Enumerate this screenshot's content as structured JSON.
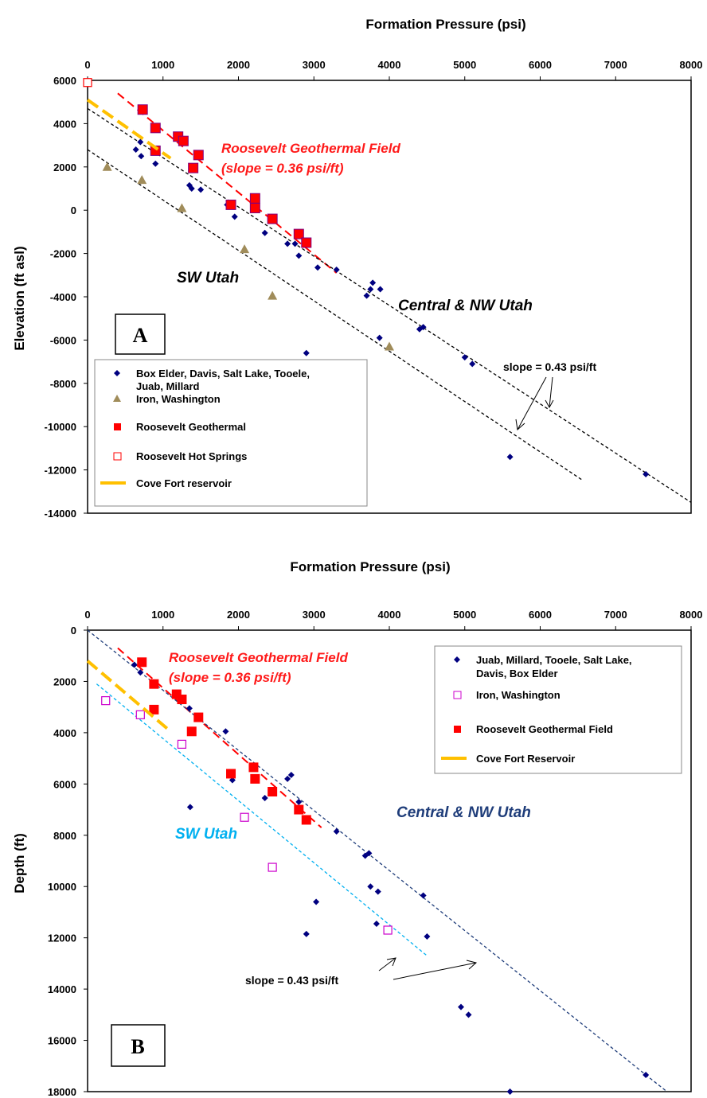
{
  "chart_data": [
    {
      "panel": "A",
      "type": "scatter",
      "xlabel": "Formation Pressure (psi)",
      "ylabel": "Elevation (ft asl)",
      "xlim": [
        0,
        8000
      ],
      "ylim": [
        -14000,
        6000
      ],
      "x_ticks": [
        0,
        1000,
        2000,
        3000,
        4000,
        5000,
        6000,
        7000,
        8000
      ],
      "y_ticks": [
        6000,
        4000,
        2000,
        0,
        -2000,
        -4000,
        -6000,
        -8000,
        -10000,
        -12000,
        -14000
      ],
      "x_axis_position": "top",
      "grid": false,
      "legend_position": "bottom-left",
      "annotations": {
        "field_line1": "Roosevelt Geothermal Field",
        "field_line2": "(slope = 0.36 psi/ft)",
        "sw": "SW Utah",
        "central": "Central & NW Utah",
        "slope": "slope = 0.43 psi/ft"
      },
      "series": [
        {
          "name": "Box Elder, Davis, Salt Lake, Tooele, Juab, Millard",
          "legend_lines": [
            "Box Elder, Davis, Salt Lake, Tooele,",
            "Juab, Millard"
          ],
          "marker": "diamond",
          "color": "#000080",
          "points": [
            [
              640,
              2800
            ],
            [
              700,
              3150
            ],
            [
              710,
              2500
            ],
            [
              900,
              2150
            ],
            [
              1350,
              1150
            ],
            [
              1380,
              1000
            ],
            [
              1500,
              950
            ],
            [
              1850,
              250
            ],
            [
              1950,
              -300
            ],
            [
              2350,
              -1050
            ],
            [
              2650,
              -1550
            ],
            [
              2750,
              -1550
            ],
            [
              2800,
              -2100
            ],
            [
              3050,
              -2650
            ],
            [
              3300,
              -2750
            ],
            [
              3700,
              -3950
            ],
            [
              3750,
              -3650
            ],
            [
              3780,
              -3350
            ],
            [
              3880,
              -3650
            ],
            [
              3870,
              -5900
            ],
            [
              2900,
              -6600
            ],
            [
              4400,
              -5500
            ],
            [
              4450,
              -5400
            ],
            [
              5000,
              -6800
            ],
            [
              5100,
              -7100
            ],
            [
              5600,
              -11400
            ],
            [
              7400,
              -12200
            ]
          ]
        },
        {
          "name": "Iron, Washington",
          "marker": "triangle",
          "color": "#a08c5a",
          "points": [
            [
              260,
              2000
            ],
            [
              720,
              1400
            ],
            [
              1250,
              100
            ],
            [
              2080,
              -1800
            ],
            [
              2450,
              -3950
            ],
            [
              4000,
              -6300
            ]
          ]
        },
        {
          "name": "Roosevelt Geothermal",
          "marker": "square",
          "color": "#ff0000",
          "points": [
            [
              730,
              4650
            ],
            [
              900,
              3800
            ],
            [
              1200,
              3400
            ],
            [
              1270,
              3200
            ],
            [
              900,
              2750
            ],
            [
              1470,
              2550
            ],
            [
              1400,
              1950
            ],
            [
              1900,
              250
            ],
            [
              2220,
              550
            ],
            [
              2220,
              100
            ],
            [
              2450,
              -400
            ],
            [
              2800,
              -1100
            ],
            [
              2900,
              -1500
            ]
          ]
        },
        {
          "name": "Roosevelt Hot Springs",
          "marker": "open-square",
          "color": "#ff0000",
          "points": [
            [
              0,
              5900
            ]
          ]
        },
        {
          "name": "Cove Fort reservoir",
          "marker": "line",
          "color": "#ffc000",
          "points": [
            [
              0,
              5100
            ],
            [
              1100,
              2400
            ]
          ]
        }
      ],
      "trend_lines": [
        {
          "color": "#ff0000",
          "points": [
            [
              400,
              5400
            ],
            [
              3300,
              -2900
            ]
          ]
        },
        {
          "color": "#000000",
          "points": [
            [
              0,
              4700
            ],
            [
              8000,
              -13500
            ]
          ]
        },
        {
          "color": "#000000",
          "points": [
            [
              0,
              2800
            ],
            [
              6550,
              -12450
            ]
          ]
        }
      ]
    },
    {
      "panel": "B",
      "type": "scatter",
      "xlabel": "Formation Pressure (psi)",
      "ylabel": "Depth (ft)",
      "xlim": [
        0,
        8000
      ],
      "ylim": [
        0,
        18000
      ],
      "y_inverted": true,
      "x_ticks": [
        0,
        1000,
        2000,
        3000,
        4000,
        5000,
        6000,
        7000,
        8000
      ],
      "y_ticks": [
        0,
        2000,
        4000,
        6000,
        8000,
        10000,
        12000,
        14000,
        16000,
        18000
      ],
      "x_axis_position": "top",
      "grid": false,
      "legend_position": "top-right",
      "annotations": {
        "field_line1": "Roosevelt Geothermal Field",
        "field_line2": "(slope = 0.36 psi/ft)",
        "sw": "SW Utah",
        "central": "Central & NW Utah",
        "slope": "slope = 0.43 psi/ft"
      },
      "series": [
        {
          "name": "Juab, Millard, Tooele, Salt Lake, Davis, Box Elder",
          "legend_lines": [
            "Juab, Millard, Tooele, Salt Lake,",
            "Davis, Box Elder"
          ],
          "marker": "diamond",
          "color": "#000080",
          "points": [
            [
              620,
              1350
            ],
            [
              700,
              1650
            ],
            [
              1350,
              3050
            ],
            [
              1450,
              3400
            ],
            [
              1830,
              3950
            ],
            [
              1920,
              5850
            ],
            [
              2350,
              6550
            ],
            [
              2650,
              5800
            ],
            [
              2700,
              5650
            ],
            [
              2800,
              6700
            ],
            [
              3300,
              7850
            ],
            [
              3680,
              8800
            ],
            [
              3730,
              8700
            ],
            [
              3750,
              10000
            ],
            [
              3850,
              10200
            ],
            [
              3830,
              11450
            ],
            [
              2900,
              11850
            ],
            [
              3030,
              10600
            ],
            [
              1360,
              6900
            ],
            [
              4450,
              10350
            ],
            [
              4500,
              11950
            ],
            [
              4950,
              14700
            ],
            [
              5050,
              15000
            ],
            [
              5600,
              18000
            ],
            [
              7400,
              17350
            ]
          ]
        },
        {
          "name": "Iron, Washington",
          "marker": "open-square",
          "color": "#cc00cc",
          "points": [
            [
              240,
              2750
            ],
            [
              700,
              3300
            ],
            [
              1250,
              4450
            ],
            [
              2080,
              7300
            ],
            [
              2450,
              9250
            ],
            [
              3980,
              11700
            ]
          ]
        },
        {
          "name": "Roosevelt Geothermal Field",
          "marker": "square",
          "color": "#ff0000",
          "points": [
            [
              720,
              1250
            ],
            [
              880,
              2100
            ],
            [
              1180,
              2500
            ],
            [
              1250,
              2700
            ],
            [
              880,
              3100
            ],
            [
              1470,
              3400
            ],
            [
              1380,
              3950
            ],
            [
              1900,
              5600
            ],
            [
              2200,
              5350
            ],
            [
              2220,
              5800
            ],
            [
              2450,
              6300
            ],
            [
              2800,
              7000
            ],
            [
              2900,
              7400
            ]
          ]
        },
        {
          "name": "Cove Fort Reservoir",
          "marker": "line",
          "color": "#ffc000",
          "points": [
            [
              0,
              1200
            ],
            [
              1100,
              3950
            ]
          ]
        }
      ],
      "trend_lines": [
        {
          "color": "#ff0000",
          "points": [
            [
              400,
              700
            ],
            [
              3100,
              7700
            ]
          ]
        },
        {
          "color": "#1f3d7a",
          "points": [
            [
              0,
              0
            ],
            [
              7680,
              18000
            ]
          ]
        },
        {
          "color": "#00b0f0",
          "points": [
            [
              120,
              2100
            ],
            [
              4500,
              12700
            ]
          ]
        }
      ]
    }
  ]
}
